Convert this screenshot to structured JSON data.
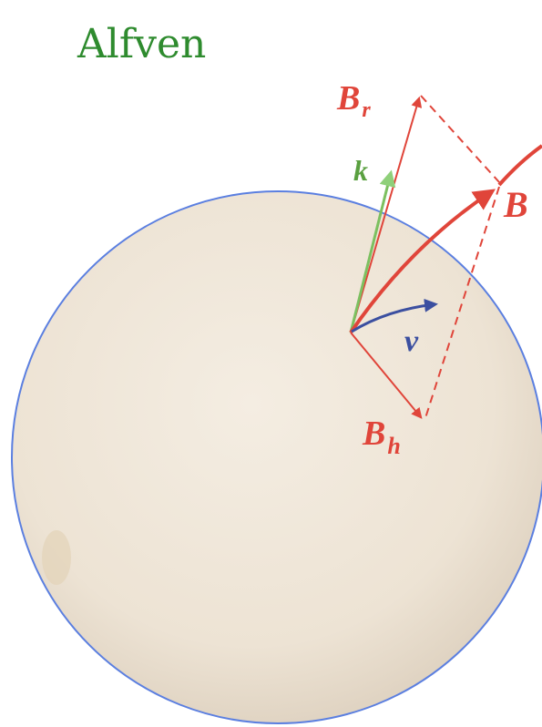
{
  "title": "Alfven",
  "labels": {
    "b_r": {
      "base": "B",
      "sub": "r"
    },
    "k": "k",
    "b": "B",
    "v": "v",
    "b_h": {
      "base": "B",
      "sub": "h"
    }
  }
}
